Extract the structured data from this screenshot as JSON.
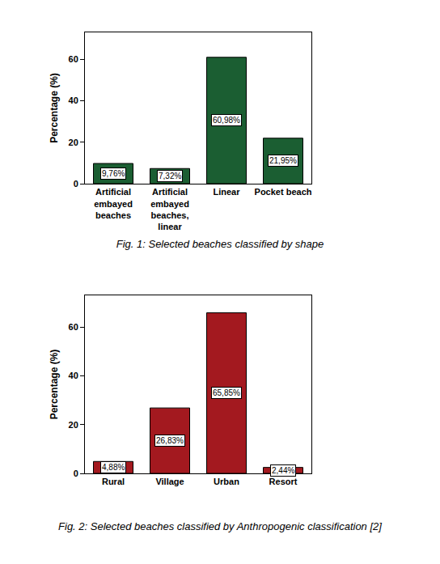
{
  "chart_data": [
    {
      "type": "bar",
      "title": "Fig. 1: Selected beaches classified by shape",
      "y_label": "Percentage (%)",
      "categories": [
        "Artificial embayed beaches",
        "Artificial embayed beaches, linear",
        "Linear",
        "Pocket beach"
      ],
      "values": [
        9.76,
        7.32,
        60.98,
        21.95
      ],
      "value_labels": [
        "9,76%",
        "7,32%",
        "60,98%",
        "21,95%"
      ],
      "data_labels": true,
      "color": "#1b5e32",
      "ylim": [
        0,
        73
      ],
      "yticks": [
        0,
        20,
        40,
        60
      ],
      "grid": false
    },
    {
      "type": "bar",
      "title": "Fig. 2: Selected beaches classified by Anthropogenic classification [2]",
      "y_label": "Percentage (%)",
      "categories": [
        "Rural",
        "Village",
        "Urban",
        "Resort"
      ],
      "values": [
        4.88,
        26.83,
        65.85,
        2.44
      ],
      "value_labels": [
        "4,88%",
        "26,83%",
        "65,85%",
        "2,44%"
      ],
      "data_labels": true,
      "color": "#a3191f",
      "ylim": [
        0,
        73
      ],
      "yticks": [
        0,
        20,
        40,
        60
      ],
      "grid": false
    }
  ]
}
